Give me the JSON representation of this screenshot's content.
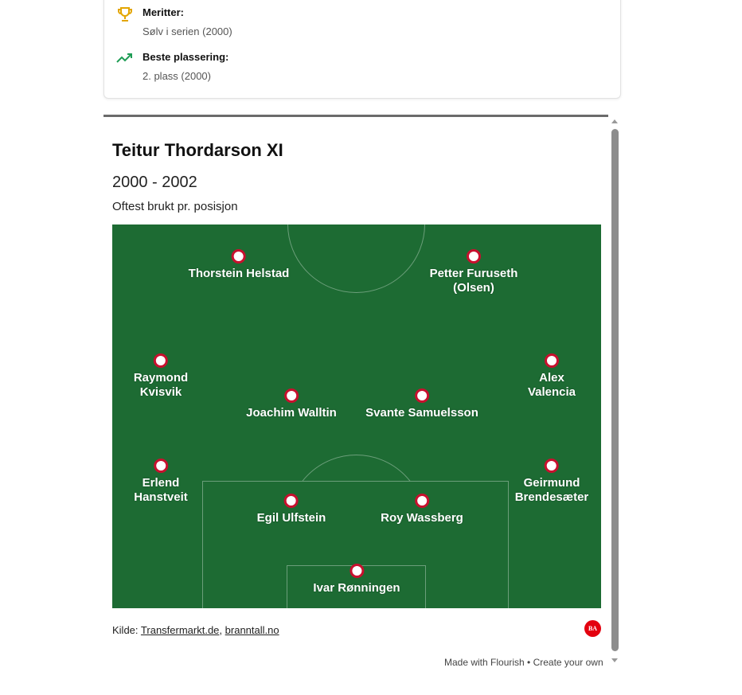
{
  "merits": [
    {
      "icon": "trophy-icon",
      "label": "Meritter:",
      "value": "Sølv i serien (2000)"
    },
    {
      "icon": "trending-up-icon",
      "label": "Beste plassering:",
      "value": "2. plass (2000)"
    }
  ],
  "chart": {
    "title": "Teitur Thordarson XI",
    "subtitle": "2000 - 2002",
    "description": "Oftest brukt pr. posisjon",
    "players": [
      {
        "name": "Thorstein Helstad",
        "position": "ST-L"
      },
      {
        "name": "Petter Furuseth (Olsen)",
        "position": "ST-R"
      },
      {
        "name": "Raymond\nKvisvik",
        "position": "LM"
      },
      {
        "name": "Alex Valencia",
        "position": "RM"
      },
      {
        "name": "Joachim Walltin",
        "position": "CM-L"
      },
      {
        "name": "Svante Samuelsson",
        "position": "CM-R"
      },
      {
        "name": "Erlend\nHanstveit",
        "position": "LB"
      },
      {
        "name": "Geirmund\nBrendesæter",
        "position": "RB"
      },
      {
        "name": "Egil Ulfstein",
        "position": "CB-L"
      },
      {
        "name": "Roy Wassberg",
        "position": "CB-R"
      },
      {
        "name": "Ivar Rønningen",
        "position": "GK"
      }
    ],
    "colors": {
      "pitch": "#1d6b33",
      "marker": "#c8102e"
    },
    "source_label": "Kilde:",
    "sources": [
      "Transfermarkt.de",
      "branntall.no"
    ],
    "logo": "BA",
    "footer": "Made with Flourish • Create your own"
  }
}
